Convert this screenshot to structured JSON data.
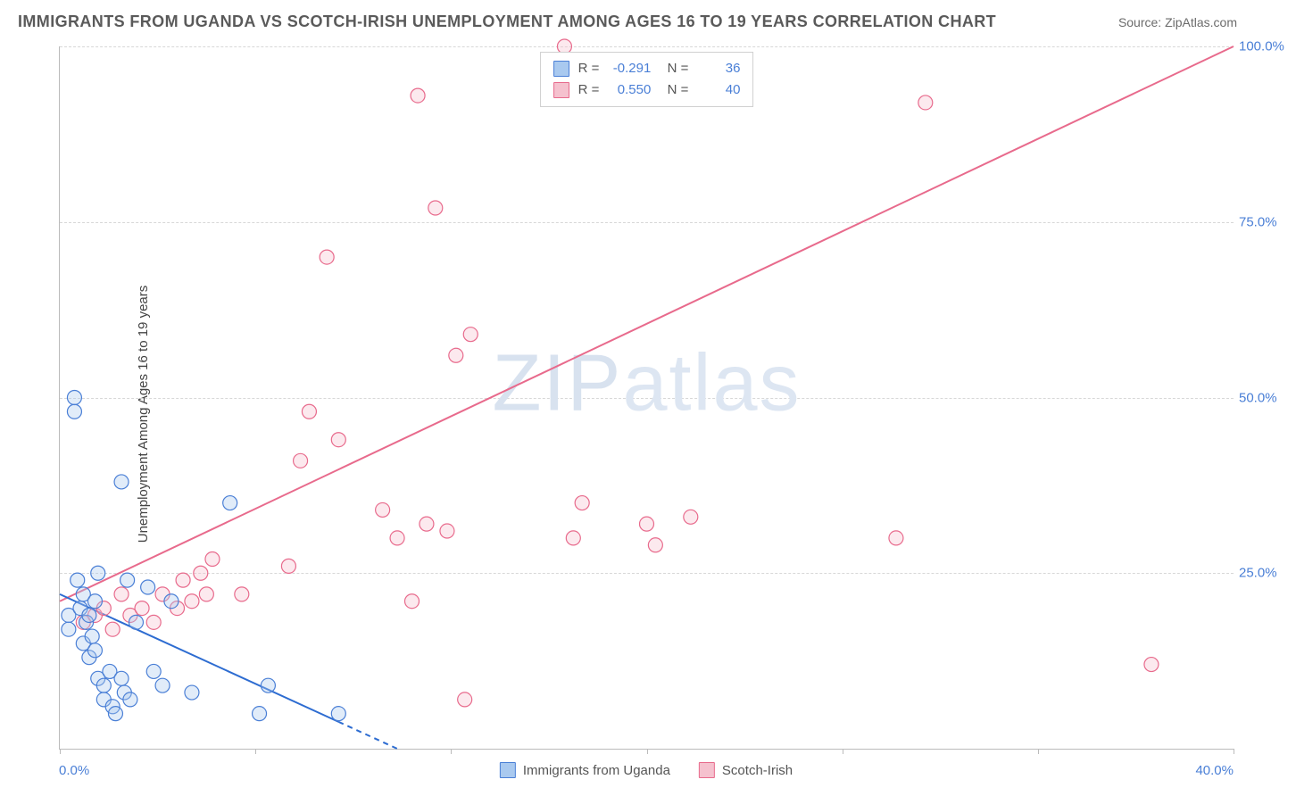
{
  "title": "IMMIGRANTS FROM UGANDA VS SCOTCH-IRISH UNEMPLOYMENT AMONG AGES 16 TO 19 YEARS CORRELATION CHART",
  "source": "Source: ZipAtlas.com",
  "watermark": "ZIPatlas",
  "ylabel": "Unemployment Among Ages 16 to 19 years",
  "chart": {
    "type": "scatter",
    "xlim": [
      0,
      40
    ],
    "ylim": [
      0,
      100
    ],
    "xtick_positions": [
      0,
      6.67,
      13.33,
      20,
      26.67,
      33.33,
      40
    ],
    "xtick_labels": {
      "left": "0.0%",
      "right": "40.0%"
    },
    "ytick_positions": [
      25,
      50,
      75,
      100
    ],
    "ytick_labels": [
      "25.0%",
      "50.0%",
      "75.0%",
      "100.0%"
    ],
    "grid_color": "#d8d8d8",
    "background_color": "#ffffff",
    "axis_color": "#bbbbbb",
    "tick_label_color": "#4a7fd6",
    "marker_radius": 8,
    "marker_stroke_width": 1.2,
    "marker_fill_opacity": 0.35,
    "line_width": 2,
    "dash_pattern": "6,5"
  },
  "series": {
    "uganda": {
      "label": "Immigrants from Uganda",
      "fill": "#a9c9ef",
      "stroke": "#4a7fd6",
      "line_color": "#2d6cd1",
      "R": "-0.291",
      "N": "36",
      "trend": {
        "x1": 0,
        "y1": 22,
        "x2": 11.5,
        "y2": 0,
        "dash_from_x": 9.5
      },
      "points": [
        [
          0.3,
          19
        ],
        [
          0.3,
          17
        ],
        [
          0.5,
          50
        ],
        [
          0.5,
          48
        ],
        [
          0.6,
          24
        ],
        [
          0.7,
          20
        ],
        [
          0.8,
          22
        ],
        [
          0.8,
          15
        ],
        [
          0.9,
          18
        ],
        [
          1.0,
          19
        ],
        [
          1.0,
          13
        ],
        [
          1.1,
          16
        ],
        [
          1.2,
          21
        ],
        [
          1.2,
          14
        ],
        [
          1.3,
          25
        ],
        [
          1.3,
          10
        ],
        [
          1.5,
          9
        ],
        [
          1.5,
          7
        ],
        [
          1.7,
          11
        ],
        [
          1.8,
          6
        ],
        [
          1.9,
          5
        ],
        [
          2.1,
          38
        ],
        [
          2.1,
          10
        ],
        [
          2.2,
          8
        ],
        [
          2.3,
          24
        ],
        [
          2.4,
          7
        ],
        [
          2.6,
          18
        ],
        [
          3.0,
          23
        ],
        [
          3.2,
          11
        ],
        [
          3.5,
          9
        ],
        [
          3.8,
          21
        ],
        [
          4.5,
          8
        ],
        [
          5.8,
          35
        ],
        [
          6.8,
          5
        ],
        [
          7.1,
          9
        ],
        [
          9.5,
          5
        ]
      ]
    },
    "scotch": {
      "label": "Scotch-Irish",
      "fill": "#f5c1ce",
      "stroke": "#e86a8c",
      "line_color": "#e86a8c",
      "R": "0.550",
      "N": "40",
      "trend": {
        "x1": 0,
        "y1": 21,
        "x2": 40,
        "y2": 100
      },
      "points": [
        [
          0.8,
          18
        ],
        [
          1.2,
          19
        ],
        [
          1.5,
          20
        ],
        [
          1.8,
          17
        ],
        [
          2.1,
          22
        ],
        [
          2.4,
          19
        ],
        [
          2.8,
          20
        ],
        [
          3.2,
          18
        ],
        [
          3.5,
          22
        ],
        [
          4.0,
          20
        ],
        [
          4.2,
          24
        ],
        [
          4.5,
          21
        ],
        [
          4.8,
          25
        ],
        [
          5.0,
          22
        ],
        [
          5.2,
          27
        ],
        [
          6.2,
          22
        ],
        [
          7.8,
          26
        ],
        [
          8.2,
          41
        ],
        [
          8.5,
          48
        ],
        [
          9.1,
          70
        ],
        [
          9.5,
          44
        ],
        [
          11.0,
          34
        ],
        [
          11.5,
          30
        ],
        [
          12.0,
          21
        ],
        [
          12.2,
          93
        ],
        [
          12.5,
          32
        ],
        [
          12.8,
          77
        ],
        [
          13.2,
          31
        ],
        [
          13.5,
          56
        ],
        [
          13.8,
          7
        ],
        [
          14.0,
          59
        ],
        [
          17.2,
          100
        ],
        [
          17.5,
          30
        ],
        [
          17.8,
          35
        ],
        [
          20.0,
          32
        ],
        [
          20.3,
          29
        ],
        [
          21.5,
          33
        ],
        [
          28.5,
          30
        ],
        [
          29.5,
          92
        ],
        [
          37.2,
          12
        ]
      ]
    }
  }
}
